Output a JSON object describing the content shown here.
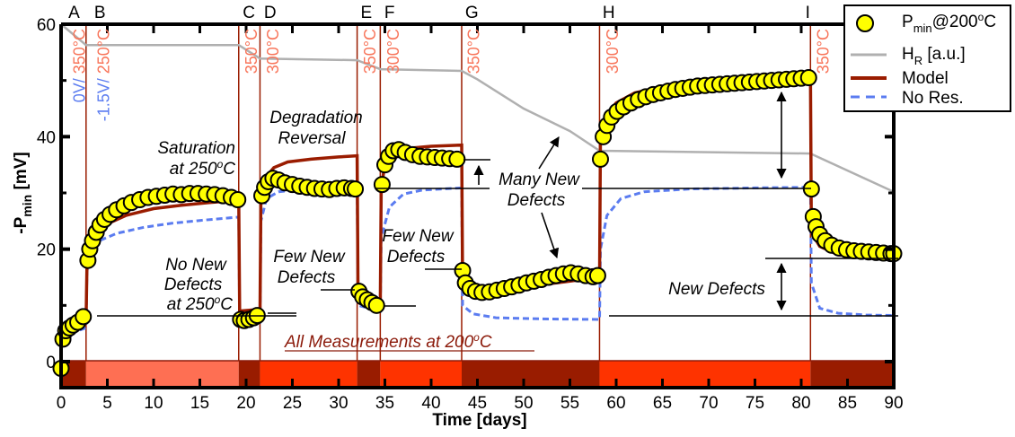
{
  "chart_data": {
    "type": "scatter",
    "title": "",
    "xlabel": "Time  [days]",
    "ylabel": "-P",
    "ylabel_sub": "min",
    "ylabel_unit": "  [mV]",
    "xlim": [
      0,
      90
    ],
    "ylim": [
      -5,
      60
    ],
    "x_ticks": [
      0,
      5,
      10,
      15,
      20,
      25,
      30,
      35,
      40,
      45,
      50,
      55,
      60,
      65,
      70,
      75,
      80,
      85,
      90
    ],
    "y_ticks": [
      0,
      20,
      40,
      60
    ],
    "y_minor_ticks": [
      10,
      30,
      50
    ],
    "grid": false,
    "legend": {
      "placement": "top-right",
      "entries": [
        {
          "name": "P",
          "sub": "min",
          "suffix": "@200",
          "sup": "o",
          "suffix2": "C",
          "style": "marker",
          "color": "#ffff00"
        },
        {
          "name": "H",
          "sub": "R",
          "suffix": " [a.u.]",
          "style": "line",
          "color": "#b0b0b0"
        },
        {
          "name": "Model",
          "style": "line",
          "color": "#9a1c00"
        },
        {
          "name": "No Res.",
          "style": "dashed",
          "color": "#5b7cf0"
        }
      ]
    },
    "phases": [
      {
        "label": "A",
        "start": 0,
        "end": 2.7,
        "color": "#991c00"
      },
      {
        "label": "B",
        "start": 2.7,
        "end": 19.2,
        "color": "#fe6f53"
      },
      {
        "label": "C",
        "start": 19.2,
        "end": 21.5,
        "color": "#991c00"
      },
      {
        "label": "D",
        "start": 21.5,
        "end": 32.0,
        "color": "#fe3300"
      },
      {
        "label": "E",
        "start": 32.0,
        "end": 34.5,
        "color": "#991c00"
      },
      {
        "label": "F",
        "start": 34.5,
        "end": 43.3,
        "color": "#fe3300"
      },
      {
        "label": "G",
        "start": 43.3,
        "end": 58.2,
        "color": "#991c00"
      },
      {
        "label": "H",
        "start": 58.2,
        "end": 81.0,
        "color": "#fe3300"
      },
      {
        "label": "I",
        "start": 81.0,
        "end": 90,
        "color": "#991c00"
      }
    ],
    "phase_label_positions": [
      1.4,
      4.2,
      20.3,
      22.6,
      33.0,
      35.5,
      44.4,
      59.2,
      80.7
    ],
    "transition_lines": [
      2.7,
      19.2,
      21.5,
      32.0,
      34.5,
      43.3,
      58.2,
      81.0
    ],
    "temperature_labels": [
      {
        "x": 2.0,
        "text": "0V/ 350°C",
        "color": "bias+temp",
        "bias": "0V/ ",
        "temp": "350°C"
      },
      {
        "x": 4.6,
        "text": "-1.5V/ 250°C",
        "bias": "-1.5V/ ",
        "temp": "250°C"
      },
      {
        "x": 20.6,
        "temp": "350°C"
      },
      {
        "x": 22.9,
        "temp": "300°C"
      },
      {
        "x": 33.4,
        "temp": "350°C"
      },
      {
        "x": 35.9,
        "temp": "300°C"
      },
      {
        "x": 44.6,
        "temp": "350°C"
      },
      {
        "x": 59.6,
        "temp": "300°C"
      },
      {
        "x": 82.4,
        "temp": "350°C"
      }
    ],
    "series": [
      {
        "name": "Pmin@200C",
        "type": "scatter",
        "color": "#ffff00",
        "points": [
          [
            0,
            -1.2
          ],
          [
            0.2,
            4
          ],
          [
            0.5,
            5.5
          ],
          [
            0.9,
            6
          ],
          [
            1.3,
            6.5
          ],
          [
            1.8,
            7
          ],
          [
            2.4,
            8
          ],
          [
            2.9,
            18
          ],
          [
            3.1,
            20
          ],
          [
            3.4,
            21.5
          ],
          [
            3.8,
            23
          ],
          [
            4.2,
            24.3
          ],
          [
            4.7,
            25.3
          ],
          [
            5.3,
            26.2
          ],
          [
            6,
            27
          ],
          [
            6.8,
            27.7
          ],
          [
            7.6,
            28.3
          ],
          [
            8.5,
            28.8
          ],
          [
            9.4,
            29.2
          ],
          [
            10.3,
            29.4
          ],
          [
            11.2,
            29.6
          ],
          [
            12.1,
            29.8
          ],
          [
            13,
            29.7
          ],
          [
            13.9,
            29.9
          ],
          [
            14.8,
            29.9
          ],
          [
            15.7,
            29.8
          ],
          [
            16.6,
            29.7
          ],
          [
            17.5,
            29.5
          ],
          [
            18.4,
            29.2
          ],
          [
            19.1,
            28.8
          ],
          [
            19.4,
            7.5
          ],
          [
            19.8,
            7.3
          ],
          [
            20.3,
            7.5
          ],
          [
            20.8,
            7.8
          ],
          [
            21.2,
            8.2
          ],
          [
            21.7,
            29.5
          ],
          [
            22,
            31
          ],
          [
            22.4,
            32
          ],
          [
            22.9,
            32.6
          ],
          [
            23.5,
            32.3
          ],
          [
            24.2,
            31.8
          ],
          [
            25,
            31.5
          ],
          [
            25.8,
            31.2
          ],
          [
            26.6,
            31
          ],
          [
            27.4,
            30.8
          ],
          [
            28.2,
            30.7
          ],
          [
            29,
            30.6
          ],
          [
            29.8,
            30.8
          ],
          [
            30.6,
            30.9
          ],
          [
            31.4,
            30.8
          ],
          [
            31.8,
            30.7
          ],
          [
            32.2,
            12.5
          ],
          [
            32.6,
            11.5
          ],
          [
            33.1,
            11
          ],
          [
            33.6,
            10.5
          ],
          [
            34.1,
            10
          ],
          [
            34.7,
            31.5
          ],
          [
            35,
            35
          ],
          [
            35.4,
            36.5
          ],
          [
            35.9,
            37.5
          ],
          [
            36.5,
            37.7
          ],
          [
            37.2,
            37.2
          ],
          [
            38,
            36.8
          ],
          [
            38.8,
            36.5
          ],
          [
            39.6,
            36.4
          ],
          [
            40.4,
            36.3
          ],
          [
            41.2,
            36.2
          ],
          [
            42,
            36.1
          ],
          [
            42.8,
            36
          ],
          [
            43.4,
            16.2
          ],
          [
            43.7,
            14
          ],
          [
            44.2,
            13
          ],
          [
            44.8,
            12.5
          ],
          [
            45.5,
            12.3
          ],
          [
            46.3,
            12.4
          ],
          [
            47.1,
            12.7
          ],
          [
            47.9,
            13
          ],
          [
            48.7,
            13.3
          ],
          [
            49.5,
            13.6
          ],
          [
            50.3,
            14
          ],
          [
            51.1,
            14.3
          ],
          [
            51.9,
            14.6
          ],
          [
            52.7,
            15
          ],
          [
            53.5,
            15.3
          ],
          [
            54.3,
            15.6
          ],
          [
            55.1,
            15.8
          ],
          [
            55.9,
            15.6
          ],
          [
            56.7,
            15.3
          ],
          [
            57.5,
            15.1
          ],
          [
            58,
            15.3
          ],
          [
            58.3,
            36
          ],
          [
            58.6,
            40
          ],
          [
            59,
            42
          ],
          [
            59.5,
            43.5
          ],
          [
            60.1,
            44.5
          ],
          [
            60.8,
            45.3
          ],
          [
            61.6,
            46
          ],
          [
            62.4,
            46.6
          ],
          [
            63.2,
            47.1
          ],
          [
            64,
            47.5
          ],
          [
            64.8,
            47.8
          ],
          [
            65.6,
            48.1
          ],
          [
            66.4,
            48.4
          ],
          [
            67.2,
            48.6
          ],
          [
            68,
            48.8
          ],
          [
            68.8,
            49
          ],
          [
            69.6,
            49.1
          ],
          [
            70.4,
            49.2
          ],
          [
            71.2,
            49.3
          ],
          [
            72,
            49.4
          ],
          [
            72.8,
            49.5
          ],
          [
            73.6,
            49.6
          ],
          [
            74.4,
            49.7
          ],
          [
            75.2,
            49.8
          ],
          [
            76,
            49.9
          ],
          [
            76.8,
            50
          ],
          [
            77.6,
            50.1
          ],
          [
            78.4,
            50.2
          ],
          [
            79.2,
            50.3
          ],
          [
            80,
            50.4
          ],
          [
            80.8,
            50.5
          ],
          [
            81.1,
            30.7
          ],
          [
            81.3,
            25.8
          ],
          [
            81.6,
            24
          ],
          [
            82,
            22.6
          ],
          [
            82.6,
            21.5
          ],
          [
            83.3,
            20.7
          ],
          [
            84.1,
            20.2
          ],
          [
            84.9,
            19.9
          ],
          [
            85.7,
            19.7
          ],
          [
            86.5,
            19.6
          ],
          [
            87.3,
            19.5
          ],
          [
            88.1,
            19.4
          ],
          [
            88.9,
            19.3
          ],
          [
            89.7,
            19.2
          ],
          [
            90,
            19.2
          ]
        ]
      },
      {
        "name": "HR [a.u.]",
        "type": "line",
        "color": "#b0b0b0",
        "points": [
          [
            0,
            60
          ],
          [
            2.7,
            56.3
          ],
          [
            19.2,
            56.3
          ],
          [
            21.5,
            53.9
          ],
          [
            32.0,
            53.6
          ],
          [
            34.5,
            52.0
          ],
          [
            43.3,
            51.7
          ],
          [
            45,
            50.2
          ],
          [
            50,
            45
          ],
          [
            55,
            41
          ],
          [
            58.2,
            37.5
          ],
          [
            81.0,
            37.0
          ],
          [
            90,
            30.2
          ]
        ]
      },
      {
        "name": "Model",
        "type": "line",
        "color": "#9a1c00",
        "points": [
          [
            0,
            5.5
          ],
          [
            1,
            6.2
          ],
          [
            2.7,
            7
          ],
          [
            2.8,
            17
          ],
          [
            3.2,
            21
          ],
          [
            4,
            23.2
          ],
          [
            5,
            24.5
          ],
          [
            7,
            26
          ],
          [
            10,
            27.2
          ],
          [
            13,
            27.8
          ],
          [
            16,
            28.3
          ],
          [
            19.2,
            28.7
          ],
          [
            19.3,
            9
          ],
          [
            21.5,
            9.3
          ],
          [
            21.6,
            30
          ],
          [
            22,
            32.5
          ],
          [
            23,
            34.5
          ],
          [
            24.5,
            35.5
          ],
          [
            27,
            36
          ],
          [
            30,
            36.4
          ],
          [
            32.0,
            36.6
          ],
          [
            32.1,
            12
          ],
          [
            33,
            11.4
          ],
          [
            34.5,
            11
          ],
          [
            34.6,
            31
          ],
          [
            35,
            35
          ],
          [
            36,
            37
          ],
          [
            38,
            38
          ],
          [
            40,
            38.3
          ],
          [
            43.3,
            38.5
          ],
          [
            43.4,
            14
          ],
          [
            44.5,
            12.8
          ],
          [
            46,
            12.5
          ],
          [
            50,
            13.3
          ],
          [
            54,
            14.1
          ],
          [
            58.2,
            15
          ],
          [
            58.3,
            40
          ],
          [
            59,
            44
          ],
          [
            60,
            46
          ],
          [
            62,
            47.8
          ],
          [
            65,
            48.9
          ],
          [
            70,
            49.6
          ],
          [
            75,
            50.2
          ],
          [
            81.0,
            50.8
          ],
          [
            81.1,
            23
          ],
          [
            82,
            20.5
          ],
          [
            84,
            19
          ],
          [
            87,
            18.6
          ],
          [
            90,
            18.5
          ]
        ]
      },
      {
        "name": "No Res.",
        "type": "dashed",
        "color": "#5b7cf0",
        "points": [
          [
            0,
            4.5
          ],
          [
            1,
            5
          ],
          [
            2.7,
            6
          ],
          [
            2.8,
            16
          ],
          [
            3.2,
            20
          ],
          [
            4,
            21.4
          ],
          [
            6,
            22.8
          ],
          [
            9,
            23.9
          ],
          [
            12,
            24.6
          ],
          [
            15,
            25.1
          ],
          [
            19.2,
            25.7
          ],
          [
            19.3,
            7
          ],
          [
            21.5,
            7
          ],
          [
            21.6,
            25
          ],
          [
            22.2,
            29
          ],
          [
            23.5,
            30.2
          ],
          [
            26,
            30.6
          ],
          [
            32.0,
            30.8
          ],
          [
            32.1,
            10
          ],
          [
            34.5,
            9
          ],
          [
            34.6,
            22
          ],
          [
            35.5,
            27.5
          ],
          [
            37,
            29.8
          ],
          [
            39,
            30.5
          ],
          [
            43.3,
            30.9
          ],
          [
            43.4,
            10
          ],
          [
            44.5,
            8.5
          ],
          [
            47,
            7.8
          ],
          [
            52,
            7.6
          ],
          [
            58.2,
            7.5
          ],
          [
            58.3,
            20
          ],
          [
            59,
            26
          ],
          [
            60.5,
            29
          ],
          [
            63,
            30.2
          ],
          [
            68,
            30.7
          ],
          [
            75,
            30.9
          ],
          [
            81.0,
            31.0
          ],
          [
            81.1,
            14
          ],
          [
            82,
            9.5
          ],
          [
            84,
            8.6
          ],
          [
            87,
            8.3
          ],
          [
            90,
            8.2
          ]
        ]
      }
    ],
    "annotations": [
      {
        "text_lines": [
          "Saturation",
          "at 250°C"
        ],
        "style": "italic"
      },
      {
        "text_lines": [
          "No New",
          "Defects",
          "at 250°C"
        ],
        "style": "italic"
      },
      {
        "text_lines": [
          "Degradation",
          "Reversal"
        ],
        "style": "italic"
      },
      {
        "text_lines": [
          "Few New",
          "Defects"
        ],
        "style": "italic"
      },
      {
        "text_lines": [
          "Few New",
          "Defects"
        ],
        "style": "italic"
      },
      {
        "text_lines": [
          "Many New",
          "Defects"
        ],
        "style": "italic"
      },
      {
        "text_lines": [
          "New Defects"
        ],
        "style": "italic"
      },
      {
        "text_lines": [
          "All Measurements at 200°C"
        ],
        "style": "italic-underline-red"
      }
    ]
  }
}
